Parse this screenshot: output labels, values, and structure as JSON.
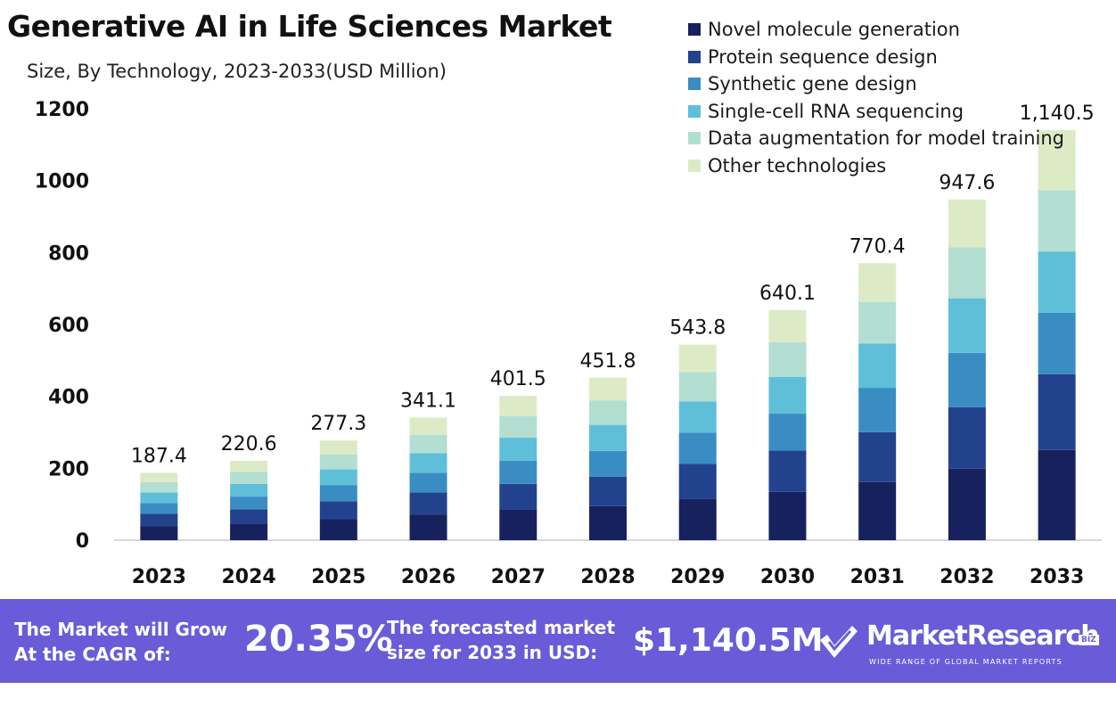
{
  "header": {
    "title": "Generative AI in Life Sciences Market",
    "subtitle": "Size, By Technology, 2023-2033(USD Million)"
  },
  "legend": [
    {
      "label": "Novel molecule generation",
      "color": "#16215e"
    },
    {
      "label": "Protein sequence design",
      "color": "#23428e"
    },
    {
      "label": "Synthetic gene design",
      "color": "#3a8dc2"
    },
    {
      "label": "Single-cell RNA sequencing",
      "color": "#5fbfd8"
    },
    {
      "label": "Data augmentation for model training",
      "color": "#b3ded2"
    },
    {
      "label": "Other technologies",
      "color": "#dcebc6"
    }
  ],
  "chart_data": {
    "type": "bar",
    "stacked": true,
    "categories": [
      "2023",
      "2024",
      "2025",
      "2026",
      "2027",
      "2028",
      "2029",
      "2030",
      "2031",
      "2032",
      "2033"
    ],
    "totals": [
      187.4,
      220.6,
      277.3,
      341.1,
      401.5,
      451.8,
      543.8,
      640.1,
      770.4,
      947.6,
      1140.5
    ],
    "total_labels": [
      "187.4",
      "220.6",
      "277.3",
      "341.1",
      "401.5",
      "451.8",
      "543.8",
      "640.1",
      "770.4",
      "947.6",
      "1,140.5"
    ],
    "series": [
      {
        "name": "Novel molecule generation",
        "values": [
          39.4,
          46.3,
          58.2,
          71.6,
          84.3,
          94.9,
          114.2,
          134.4,
          161.8,
          199.0,
          250.9
        ]
      },
      {
        "name": "Protein sequence design",
        "values": [
          33.7,
          39.7,
          49.9,
          61.4,
          72.3,
          81.3,
          97.9,
          115.2,
          138.7,
          170.6,
          210.9
        ]
      },
      {
        "name": "Synthetic gene design",
        "values": [
          30.0,
          35.3,
          44.4,
          54.6,
          64.2,
          72.3,
          87.0,
          102.4,
          123.3,
          151.6,
          170.6
        ]
      },
      {
        "name": "Single-cell RNA sequencing",
        "values": [
          30.0,
          35.3,
          44.4,
          54.6,
          64.2,
          72.3,
          87.0,
          102.4,
          123.3,
          151.6,
          170.6
        ]
      },
      {
        "name": "Data augmentation for model training",
        "values": [
          28.1,
          33.1,
          41.6,
          51.2,
          60.2,
          67.8,
          81.6,
          96.0,
          115.6,
          142.1,
          170.6
        ]
      },
      {
        "name": "Other technologies",
        "values": [
          26.2,
          30.9,
          38.8,
          47.7,
          56.3,
          63.2,
          76.1,
          89.7,
          107.7,
          132.7,
          166.9
        ]
      }
    ],
    "ylim": [
      0,
      1200
    ],
    "yticks": [
      0,
      200,
      400,
      600,
      800,
      1000,
      1200
    ],
    "legend_position": "top-right",
    "grid": false
  },
  "banner": {
    "line1": "The Market will Grow At the CAGR of:",
    "cagr": "20.35%",
    "line2": "The forecasted market size for 2033 in USD:",
    "value": "$1,140.5M",
    "brand": "MarketResearch",
    "brand_suffix": "BIZ",
    "tagline": "WIDE RANGE OF GLOBAL MARKET REPORTS"
  }
}
